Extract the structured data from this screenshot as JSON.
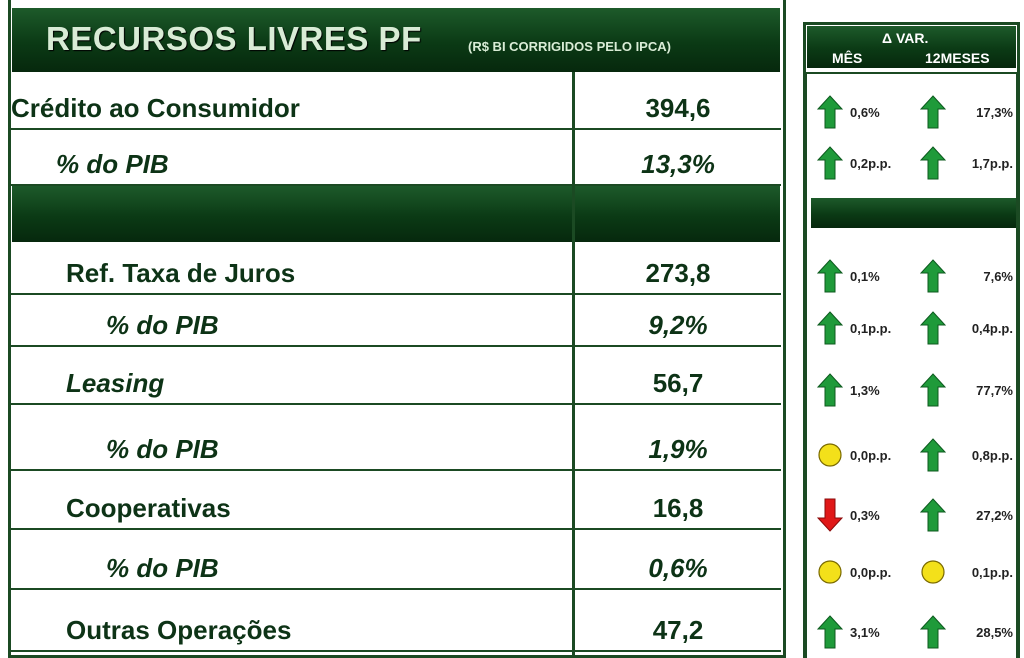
{
  "header": {
    "title": "RECURSOS LIVRES PF",
    "subtitle": "(R$ BI CORRIGIDOS PELO IPCA)"
  },
  "variation_header": {
    "title": "Δ VAR.",
    "month": "MÊS",
    "twelve_months": "12MESES"
  },
  "rows": [
    {
      "label": "Crédito ao Consumidor",
      "value": "394,6",
      "month": "0,6%",
      "twelve_months": "17,3%"
    },
    {
      "label": "% do PIB",
      "value": "13,3%",
      "month": "0,2p.p.",
      "twelve_months": "1,7p.p."
    },
    {
      "label": "Ref. Taxa de Juros",
      "value": "273,8",
      "month": "0,1%",
      "twelve_months": "7,6%"
    },
    {
      "label": "% do PIB",
      "value": "9,2%",
      "month": "0,1p.p.",
      "twelve_months": "0,4p.p."
    },
    {
      "label": "Leasing",
      "value": "56,7",
      "month": "1,3%",
      "twelve_months": "77,7%"
    },
    {
      "label": "% do PIB",
      "value": "1,9%",
      "month": "0,0p.p.",
      "twelve_months": "0,8p.p."
    },
    {
      "label": "Cooperativas",
      "value": "16,8",
      "month": "0,3%",
      "twelve_months": "27,2%"
    },
    {
      "label": "% do PIB",
      "value": "0,6%",
      "month": "0,0p.p.",
      "twelve_months": "0,1p.p."
    },
    {
      "label": "Outras Operações",
      "value": "47,2",
      "month": "3,1%",
      "twelve_months": "28,5%"
    }
  ]
}
